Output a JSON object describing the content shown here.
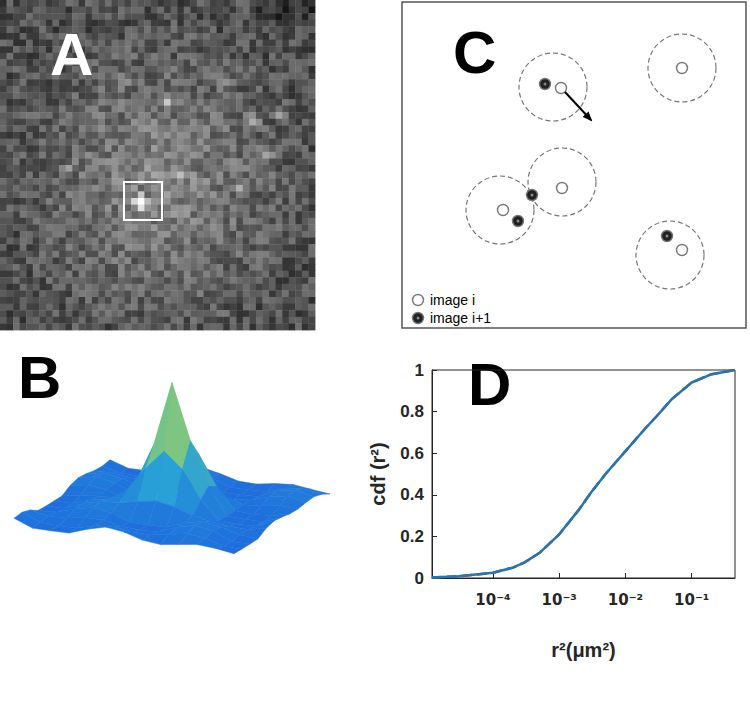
{
  "panel_labels": [
    "A",
    "B",
    "C",
    "D"
  ],
  "diagram": {
    "legend": [
      {
        "label": "image i",
        "marker": "open"
      },
      {
        "label": "image i+1",
        "marker": "filled"
      }
    ]
  },
  "chart_data": {
    "type": "line",
    "xlabel": "r²(μm²)",
    "ylabel": "cdf (r²)",
    "log": "x",
    "grid": false,
    "x": [
      1.2e-05,
      3e-05,
      0.0001,
      0.0002,
      0.0003,
      0.0005,
      0.001,
      0.002,
      0.003,
      0.005,
      0.01,
      0.02,
      0.03,
      0.05,
      0.1,
      0.2,
      0.45
    ],
    "series": [
      {
        "color": "#d62728",
        "line_style": "dashed",
        "values": [
          0.003,
          0.008,
          0.025,
          0.05,
          0.075,
          0.12,
          0.21,
          0.33,
          0.41,
          0.5,
          0.61,
          0.72,
          0.78,
          0.86,
          0.94,
          0.98,
          1.0
        ]
      },
      {
        "color": "#1f77b4",
        "line_style": "solid",
        "values": [
          0.003,
          0.008,
          0.025,
          0.05,
          0.075,
          0.12,
          0.21,
          0.33,
          0.41,
          0.5,
          0.61,
          0.72,
          0.78,
          0.86,
          0.94,
          0.98,
          1.0
        ]
      }
    ],
    "xlim": [
      1.2e-05,
      0.45
    ],
    "xticks": [
      {
        "value": 0.0001,
        "label": "10⁻⁴"
      },
      {
        "value": 0.001,
        "label": "10⁻³"
      },
      {
        "value": 0.01,
        "label": "10⁻²"
      },
      {
        "value": 0.1,
        "label": "10⁻¹"
      }
    ],
    "ylim": [
      0,
      1
    ],
    "yticks": [
      0,
      0.2,
      0.4,
      0.6,
      0.8,
      1
    ]
  }
}
